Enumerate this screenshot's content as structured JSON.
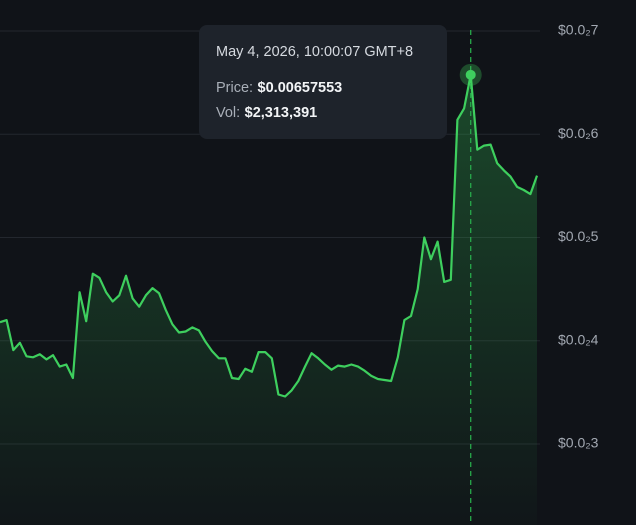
{
  "chart_data": {
    "type": "line",
    "values": [
      0.00418,
      0.0042,
      0.00391,
      0.00398,
      0.00385,
      0.00384,
      0.00387,
      0.00382,
      0.00386,
      0.00375,
      0.00377,
      0.00364,
      0.00447,
      0.00419,
      0.00465,
      0.00461,
      0.00447,
      0.00438,
      0.00444,
      0.00463,
      0.00441,
      0.00433,
      0.00444,
      0.00451,
      0.00446,
      0.0043,
      0.00416,
      0.00408,
      0.00409,
      0.00413,
      0.0041,
      0.00399,
      0.0039,
      0.00383,
      0.00383,
      0.00364,
      0.00363,
      0.00373,
      0.0037,
      0.00389,
      0.00389,
      0.00383,
      0.00348,
      0.00346,
      0.00352,
      0.00361,
      0.00375,
      0.00388,
      0.00383,
      0.00377,
      0.00372,
      0.00376,
      0.00375,
      0.00377,
      0.00375,
      0.00371,
      0.00366,
      0.00363,
      0.00362,
      0.00361,
      0.00384,
      0.0042,
      0.00424,
      0.0045,
      0.005,
      0.00479,
      0.00496,
      0.00457,
      0.00459,
      0.00614,
      0.00625,
      0.00657553,
      0.00585,
      0.00589,
      0.0059,
      0.00572,
      0.00565,
      0.00559,
      0.00549,
      0.00546,
      0.00542,
      0.0056
    ],
    "color": "#3ecf5e",
    "ylim": [
      0.002216,
      0.0073
    ],
    "yticks": [
      {
        "value": 0.003,
        "label": "$0.0₂3"
      },
      {
        "value": 0.004,
        "label": "$0.0₂4"
      },
      {
        "value": 0.005,
        "label": "$0.0₂5"
      },
      {
        "value": 0.006,
        "label": "$0.0₂6"
      },
      {
        "value": 0.007,
        "label": "$0.0₂7"
      }
    ],
    "grid": true,
    "tooltip": {
      "date": "May 4, 2026, 10:00:07 GMT+8",
      "price_label": "Price:",
      "price": "$0.00657553",
      "vol_label": "Vol:",
      "vol": "$2,313,391"
    }
  }
}
